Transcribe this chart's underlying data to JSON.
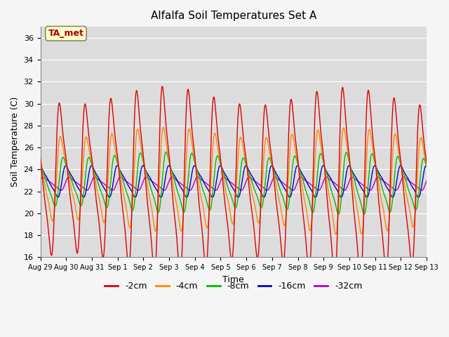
{
  "title": "Alfalfa Soil Temperatures Set A",
  "xlabel": "Time",
  "ylabel": "Soil Temperature (C)",
  "ylim": [
    16,
    37
  ],
  "legend_labels": [
    "-2cm",
    "-4cm",
    "-8cm",
    "-16cm",
    "-32cm"
  ],
  "legend_colors": [
    "#dd0000",
    "#ff8800",
    "#00bb00",
    "#0000cc",
    "#bb00bb"
  ],
  "annotation_text": "TA_met",
  "annotation_color": "#aa0000",
  "annotation_bg": "#ffffcc",
  "background_color": "#dcdcdc",
  "grid_color": "#ffffff",
  "tick_labels": [
    "Aug 29",
    "Aug 30",
    "Aug 31",
    "Sep 1",
    "Sep 2",
    "Sep 3",
    "Sep 4",
    "Sep 5",
    "Sep 6",
    "Sep 7",
    "Sep 8",
    "Sep 9",
    "Sep 10",
    "Sep 11",
    "Sep 12",
    "Sep 13"
  ],
  "num_days": 15,
  "figsize": [
    6.4,
    4.8
  ],
  "dpi": 100
}
